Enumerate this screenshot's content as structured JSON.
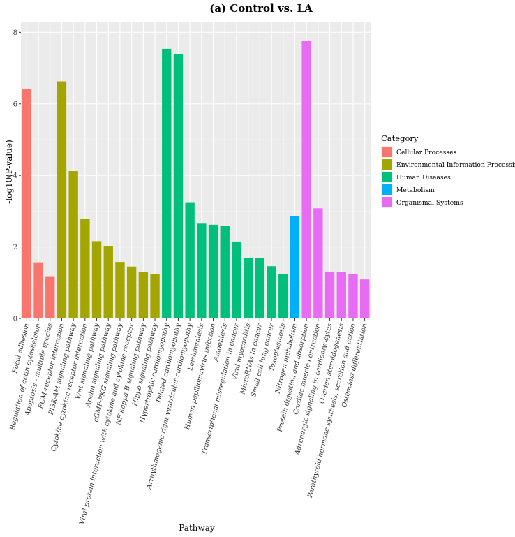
{
  "chart_data": {
    "type": "bar",
    "title": "(a) Control vs. LA",
    "xlabel": "Pathway",
    "ylabel": "-log10(P-value)",
    "ylim": [
      0,
      8.3
    ],
    "yticks": [
      0,
      2,
      4,
      6,
      8
    ],
    "grid": true,
    "legend": {
      "title": "Category",
      "placement": "right",
      "entries": [
        {
          "name": "Cellular Processes",
          "color": "#F8766D"
        },
        {
          "name": "Environmental Information Processing",
          "color": "#A3A500"
        },
        {
          "name": "Human Diseases",
          "color": "#00BF7D"
        },
        {
          "name": "Metabolism",
          "color": "#00B0F6"
        },
        {
          "name": "Organismal Systems",
          "color": "#E76BF3"
        }
      ]
    },
    "categories": [
      "Focal adhesion",
      "Regulation of actin cytoskeleton",
      "Apoptosis - multiple species",
      "ECM-receptor interaction",
      "PI3K-Akt signaling pathway",
      "Cytokine-cytokine receptor interaction",
      "Wnt signaling pathway",
      "Apelin signaling pathway",
      "cGMP-PKG signaling pathway",
      "Viral protein interaction with cytokine and cytokine receptor",
      "NF-kappa B signaling pathway",
      "Hippo signaling pathway",
      "Hypertrophic cardiomyopathy",
      "Dilated cardiomyopathy",
      "Arrhythmogenic right ventricular cardiomyopathy",
      "Leishmaniasis",
      "Human papillomavirus infection",
      "Amoebiasis",
      "Transcriptional misregulation in cancer",
      "Viral myocarditis",
      "MicroRNAs in cancer",
      "Small cell lung cancer",
      "Toxoplasmosis",
      "Nitrogen metabolism",
      "Protein digestion and absorption",
      "Cardiac muscle contraction",
      "Adrenergic signaling in cardiomyocytes",
      "Ovarian steroidogenesis",
      "Parathyroid hormone synthesis, secretion and action",
      "Osteoclast differentiation"
    ],
    "values": [
      6.42,
      1.57,
      1.18,
      6.63,
      4.12,
      2.79,
      2.16,
      2.03,
      1.58,
      1.45,
      1.3,
      1.24,
      7.54,
      7.4,
      3.25,
      2.65,
      2.62,
      2.58,
      2.15,
      1.69,
      1.68,
      1.46,
      1.24,
      2.86,
      7.77,
      3.08,
      1.31,
      1.29,
      1.25,
      1.09
    ],
    "category_groups": [
      "Cellular Processes",
      "Cellular Processes",
      "Cellular Processes",
      "Environmental Information Processing",
      "Environmental Information Processing",
      "Environmental Information Processing",
      "Environmental Information Processing",
      "Environmental Information Processing",
      "Environmental Information Processing",
      "Environmental Information Processing",
      "Environmental Information Processing",
      "Environmental Information Processing",
      "Human Diseases",
      "Human Diseases",
      "Human Diseases",
      "Human Diseases",
      "Human Diseases",
      "Human Diseases",
      "Human Diseases",
      "Human Diseases",
      "Human Diseases",
      "Human Diseases",
      "Human Diseases",
      "Metabolism",
      "Organismal Systems",
      "Organismal Systems",
      "Organismal Systems",
      "Organismal Systems",
      "Organismal Systems",
      "Organismal Systems"
    ]
  }
}
